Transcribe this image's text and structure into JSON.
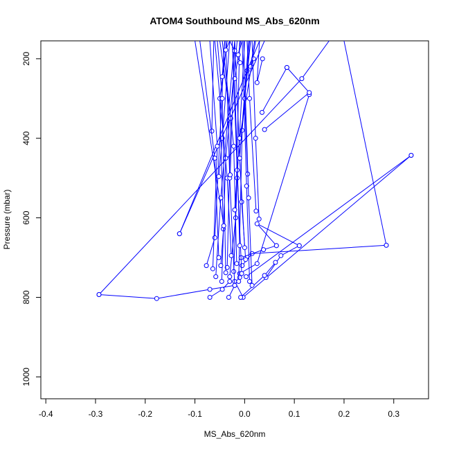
{
  "chart_data": {
    "type": "line",
    "title": "ATOM4 Southbound MS_Abs_620nm",
    "xlabel": "MS_Abs_620nm",
    "ylabel": "Pressure (mbar)",
    "xlim": [
      -0.41,
      0.37
    ],
    "ylim": [
      1055,
      155
    ],
    "y_reversed": true,
    "x_ticks": [
      -0.4,
      -0.3,
      -0.2,
      -0.1,
      0.0,
      0.1,
      0.2,
      0.3
    ],
    "x_tick_labels": [
      "-0.4",
      "-0.3",
      "-0.2",
      "-0.1",
      "0.0",
      "0.1",
      "0.2",
      "0.3"
    ],
    "y_ticks": [
      200,
      400,
      600,
      800,
      1000
    ],
    "y_tick_labels": [
      "200",
      "400",
      "600",
      "800",
      "1000"
    ],
    "grid": false,
    "legend": "none",
    "series_style": {
      "color": "#0000ff",
      "marker": "open-circle",
      "line": "solid"
    },
    "series": [
      {
        "x": [
          -0.293,
          -0.177,
          -0.07,
          -0.02
        ],
        "y": [
          793,
          803,
          780,
          770
        ]
      },
      {
        "x": [
          -0.293,
          0.115,
          0.17
        ],
        "y": [
          793,
          250,
          155
        ]
      },
      {
        "x": [
          -0.131,
          0.005,
          0.03
        ],
        "y": [
          640,
          230,
          155
        ]
      },
      {
        "x": [
          -0.131,
          0.04
        ],
        "y": [
          640,
          155
        ]
      },
      {
        "x": [
          0.335,
          -0.003,
          -0.02
        ],
        "y": [
          443,
          800,
          760
        ]
      },
      {
        "x": [
          0.335,
          0.003
        ],
        "y": [
          443,
          748
        ]
      },
      {
        "x": [
          0.285,
          0.2
        ],
        "y": [
          669,
          155
        ]
      },
      {
        "x": [
          0.285,
          0.015,
          -0.005
        ],
        "y": [
          669,
          690,
          720
        ]
      },
      {
        "x": [
          0.13,
          0.025,
          -0.01
        ],
        "y": [
          290,
          715,
          740
        ]
      },
      {
        "x": [
          0.085,
          0.035
        ],
        "y": [
          222,
          335
        ]
      },
      {
        "x": [
          0.085,
          0.13,
          0.04
        ],
        "y": [
          222,
          285,
          378
        ]
      },
      {
        "x": [
          0.11,
          0.025,
          0.064
        ],
        "y": [
          670,
          615,
          670
        ]
      },
      {
        "x": [
          0.11,
          0.073,
          0.043
        ],
        "y": [
          670,
          695,
          750
        ]
      },
      {
        "x": [
          0.064,
          0.038,
          -0.007
        ],
        "y": [
          670,
          680,
          700
        ]
      },
      {
        "x": [
          -0.07,
          -0.045,
          -0.03
        ],
        "y": [
          800,
          780,
          760
        ]
      },
      {
        "x": [
          -0.032,
          -0.02,
          -0.01
        ],
        "y": [
          800,
          770,
          750
        ]
      },
      {
        "x": [
          -0.008,
          0.04,
          0.062
        ],
        "y": [
          800,
          745,
          712
        ]
      },
      {
        "x": [
          -0.077,
          -0.06,
          -0.04
        ],
        "y": [
          720,
          650,
          155
        ]
      },
      {
        "x": [
          -0.066,
          -0.062
        ],
        "y": [
          382,
          155
        ]
      },
      {
        "x": [
          -0.052,
          -0.045,
          -0.03
        ],
        "y": [
          496,
          400,
          155
        ]
      },
      {
        "x": [
          -0.043,
          -0.05,
          -0.035
        ],
        "y": [
          628,
          300,
          155
        ]
      },
      {
        "x": [
          0.029,
          0.022,
          0.015
        ],
        "y": [
          603,
          400,
          155
        ]
      },
      {
        "x": [
          0.023,
          0.01,
          0.005
        ],
        "y": [
          583,
          300,
          155
        ]
      },
      {
        "x": [
          0.018,
          0.012,
          0.02
        ],
        "y": [
          200,
          220,
          155
        ]
      },
      {
        "x": [
          0.036,
          0.025,
          0.03
        ],
        "y": [
          200,
          260,
          155
        ]
      },
      {
        "x": [
          -0.03,
          -0.018,
          -0.01
        ],
        "y": [
          748,
          600,
          155
        ]
      },
      {
        "x": [
          -0.022,
          -0.015,
          0.0
        ],
        "y": [
          735,
          500,
          155
        ]
      },
      {
        "x": [
          -0.058,
          -0.048,
          -0.02
        ],
        "y": [
          748,
          550,
          155
        ]
      },
      {
        "x": [
          -0.046,
          -0.038,
          -0.015
        ],
        "y": [
          760,
          450,
          155
        ]
      },
      {
        "x": [
          -0.012,
          -0.005,
          0.01
        ],
        "y": [
          760,
          380,
          155
        ]
      },
      {
        "x": [
          0.01,
          0.004,
          -0.005
        ],
        "y": [
          760,
          520,
          155
        ]
      },
      {
        "x": [
          -0.006,
          -0.015,
          -0.025
        ],
        "y": [
          740,
          480,
          155
        ]
      },
      {
        "x": [
          -0.035,
          -0.028,
          -0.05
        ],
        "y": [
          725,
          350,
          155
        ]
      },
      {
        "x": [
          -0.016,
          -0.022,
          -0.045
        ],
        "y": [
          715,
          420,
          155
        ]
      },
      {
        "x": [
          0.002,
          -0.006,
          -0.02
        ],
        "y": [
          705,
          560,
          155
        ]
      },
      {
        "x": [
          -0.027,
          -0.035,
          -0.06
        ],
        "y": [
          695,
          500,
          155
        ]
      },
      {
        "x": [
          -0.01,
          -0.02,
          -0.008
        ],
        "y": [
          670,
          250,
          155
        ]
      },
      {
        "x": [
          -0.038,
          -0.045,
          -0.055
        ],
        "y": [
          738,
          300,
          155
        ]
      },
      {
        "x": [
          -0.064,
          -0.055,
          -0.07
        ],
        "y": [
          728,
          420,
          155
        ]
      },
      {
        "x": [
          -0.052,
          -0.06,
          -0.09
        ],
        "y": [
          700,
          450,
          155
        ]
      },
      {
        "x": [
          -0.048,
          -0.042,
          -0.1
        ],
        "y": [
          720,
          620,
          155
        ]
      },
      {
        "x": [
          0.006,
          0.0,
          0.012
        ],
        "y": [
          490,
          300,
          155
        ]
      },
      {
        "x": [
          -0.02,
          -0.03,
          -0.038
        ],
        "y": [
          770,
          500,
          155
        ]
      },
      {
        "x": [
          0.015,
          0.008,
          -0.002
        ],
        "y": [
          770,
          550,
          155
        ]
      },
      {
        "x": [
          -0.02,
          -0.01,
          0.022
        ],
        "y": [
          580,
          400,
          155
        ]
      },
      {
        "x": [
          -0.009,
          -0.02,
          -0.03
        ],
        "y": [
          210,
          180,
          155
        ]
      },
      {
        "x": [
          -0.045,
          -0.04
        ],
        "y": [
          245,
          155
        ]
      },
      {
        "x": [
          -0.038,
          -0.03
        ],
        "y": [
          178,
          155
        ]
      },
      {
        "x": [
          -0.013,
          -0.005
        ],
        "y": [
          190,
          155
        ]
      },
      {
        "x": [
          0.0,
          -0.01,
          0.008
        ],
        "y": [
          675,
          450,
          155
        ]
      },
      {
        "x": [
          -0.029,
          -0.02
        ],
        "y": [
          492,
          155
        ]
      }
    ]
  }
}
